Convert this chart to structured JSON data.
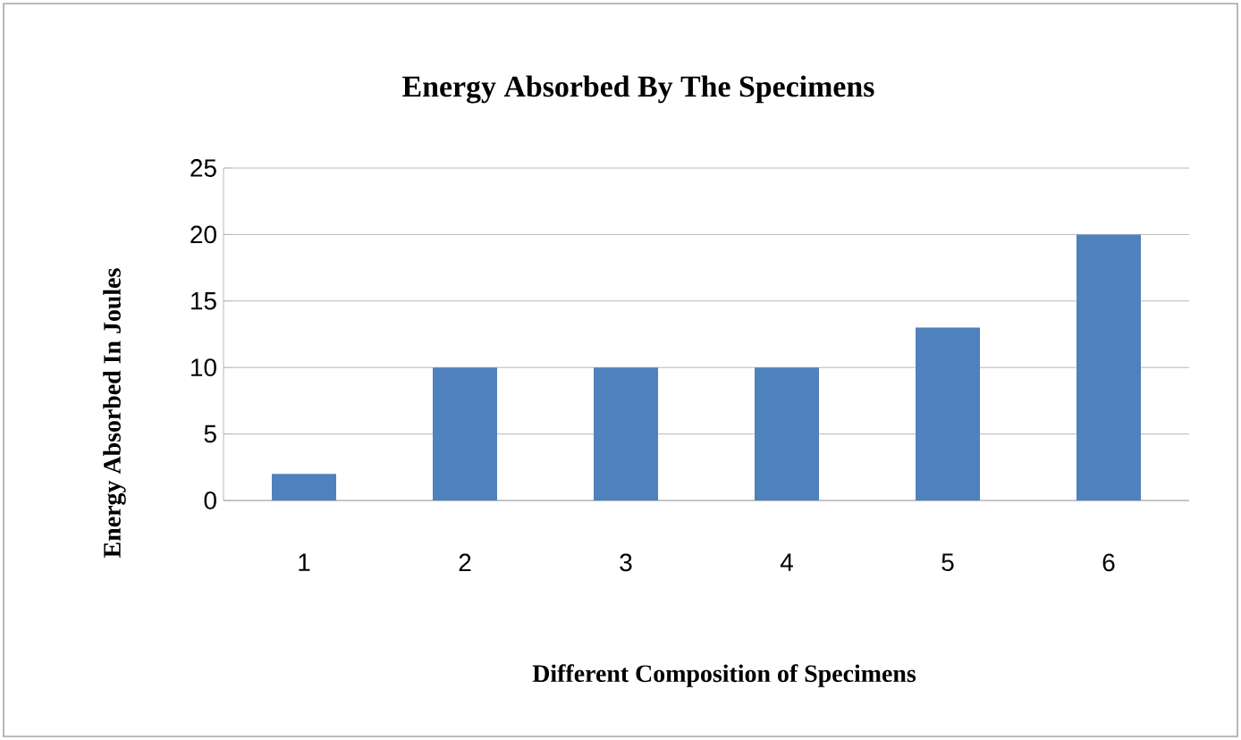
{
  "chart_data": {
    "type": "bar",
    "title": "Energy Absorbed By The Specimens",
    "xlabel": "Different Composition of Specimens",
    "ylabel": "Energy Absorbed In Joules",
    "categories": [
      "1",
      "2",
      "3",
      "4",
      "5",
      "6"
    ],
    "values": [
      2,
      10,
      10,
      10,
      13,
      20
    ],
    "color": "#4f81bd",
    "ylim": [
      0,
      25
    ],
    "yticks": [
      0,
      5,
      10,
      15,
      20,
      25
    ],
    "grid": "y"
  }
}
